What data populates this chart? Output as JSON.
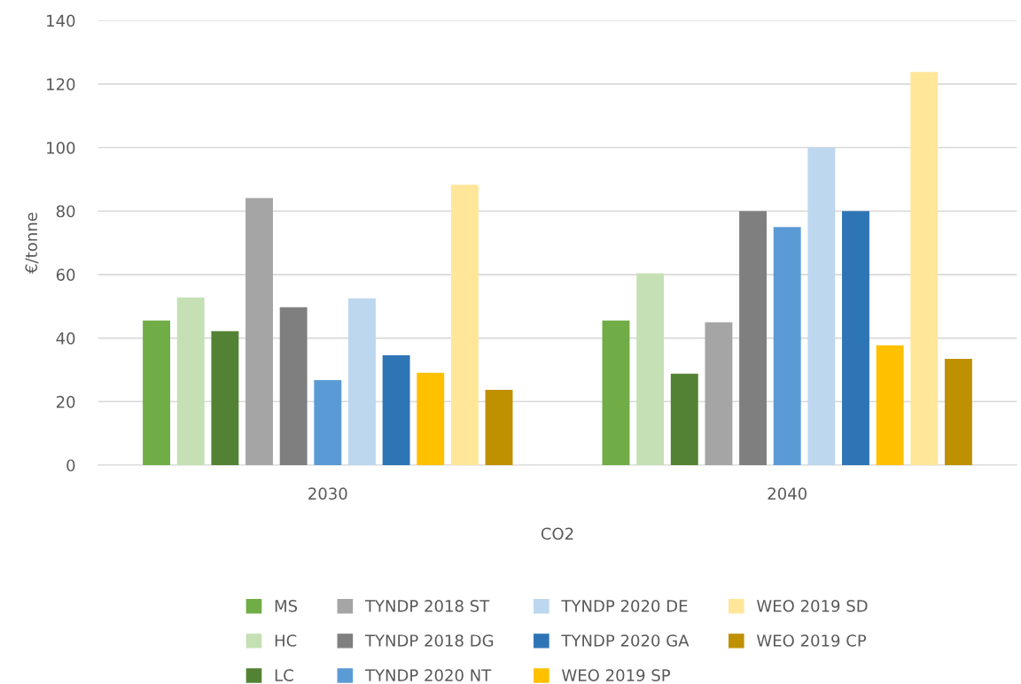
{
  "chart_data": {
    "type": "bar",
    "xlabel": "CO2",
    "ylabel": "€/tonne",
    "categories": [
      "2030",
      "2040"
    ],
    "series": [
      {
        "name": "MS",
        "color": "#70ad47",
        "values": [
          45.5,
          45.5
        ]
      },
      {
        "name": "HC",
        "color": "#c5e0b4",
        "values": [
          52.8,
          60.4
        ]
      },
      {
        "name": "LC",
        "color": "#548235",
        "values": [
          42.2,
          28.8
        ]
      },
      {
        "name": "TYNDP 2018 ST",
        "color": "#a5a5a5",
        "values": [
          84.1,
          45
        ]
      },
      {
        "name": "TYNDP 2018 DG",
        "color": "#7f7f7f",
        "values": [
          49.7,
          80
        ]
      },
      {
        "name": "TYNDP 2020 NT",
        "color": "#5b9bd5",
        "values": [
          26.8,
          75
        ]
      },
      {
        "name": "TYNDP 2020 DE",
        "color": "#bdd7ee",
        "values": [
          52.5,
          100
        ]
      },
      {
        "name": "TYNDP 2020 GA",
        "color": "#2e75b6",
        "values": [
          34.6,
          80
        ]
      },
      {
        "name": "WEO 2019 SP",
        "color": "#ffc000",
        "values": [
          29.1,
          37.7
        ]
      },
      {
        "name": "WEO 2019 SD",
        "color": "#ffe699",
        "values": [
          88.3,
          123.8
        ]
      },
      {
        "name": "WEO 2019 CP",
        "color": "#bf9000",
        "values": [
          23.7,
          33.5
        ]
      }
    ],
    "ylim": [
      0,
      140
    ],
    "yticks": [
      0,
      20,
      40,
      60,
      80,
      100,
      120,
      140
    ],
    "grid": "y",
    "legend": "bottom"
  }
}
